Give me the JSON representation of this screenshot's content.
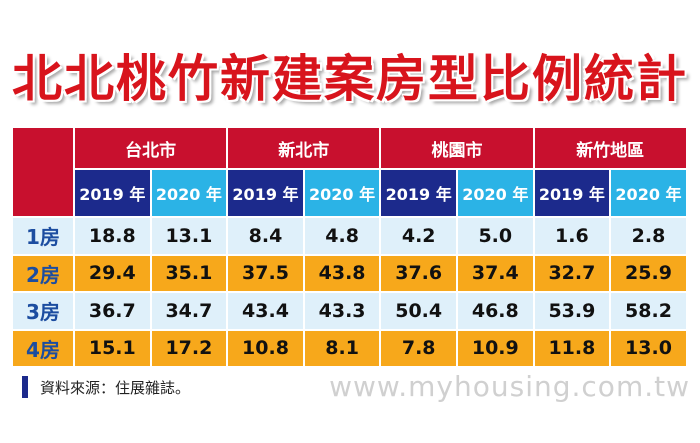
{
  "title": "北北桃竹新建案房型比例統計",
  "table": {
    "groups": [
      "台北市",
      "新北市",
      "桃園市",
      "新竹地區"
    ],
    "years": [
      "2019 年",
      "2020 年",
      "2019 年",
      "2020 年",
      "2019 年",
      "2020 年",
      "2019 年",
      "2020 年"
    ],
    "rows": [
      {
        "label": "1房",
        "values": [
          "18.8",
          "13.1",
          "8.4",
          "4.8",
          "4.2",
          "5.0",
          "1.6",
          "2.8"
        ]
      },
      {
        "label": "2房",
        "values": [
          "29.4",
          "35.1",
          "37.5",
          "43.8",
          "37.6",
          "37.4",
          "32.7",
          "25.9"
        ]
      },
      {
        "label": "3房",
        "values": [
          "36.7",
          "34.7",
          "43.4",
          "43.3",
          "50.4",
          "46.8",
          "53.9",
          "58.2"
        ]
      },
      {
        "label": "4房",
        "values": [
          "15.1",
          "17.2",
          "10.8",
          "8.1",
          "7.8",
          "10.9",
          "11.8",
          "13.0"
        ]
      }
    ]
  },
  "source": "資料來源：住展雜誌。",
  "watermark": "www.myhousing.com.tw"
}
